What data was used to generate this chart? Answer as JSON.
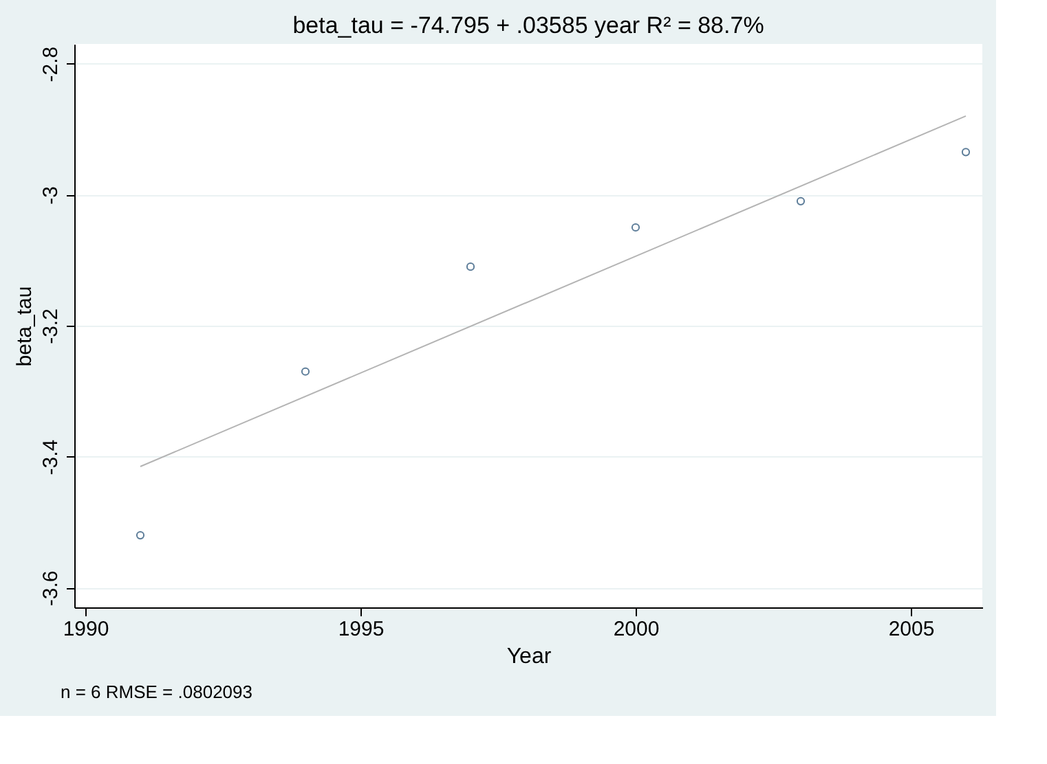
{
  "chart_data": {
    "type": "scatter",
    "title": "beta_tau = -74.795 + .03585 year    R² = 88.7%",
    "xlabel": "Year",
    "ylabel": "beta_tau",
    "series": [
      {
        "x": [
          1991,
          1994,
          1997,
          2000,
          2003,
          2006
        ],
        "values": [
          -3.52,
          -3.27,
          -3.11,
          -3.05,
          -3.01,
          -2.935
        ],
        "color": "#1a476f",
        "marker": "circle"
      },
      {
        "type": "line",
        "x": [
          1991,
          2006
        ],
        "values": [
          -3.415,
          -2.88
        ],
        "color": "#b4b4b4",
        "line_style": "solid"
      }
    ],
    "xlim": [
      1989.8,
      2006.3
    ],
    "xticks": [
      1990,
      1995,
      2000,
      2005
    ],
    "ylim": [
      -3.63,
      -2.77
    ],
    "yticks": [
      -3.6,
      -3.4,
      -3.2,
      -3,
      -2.8
    ],
    "grid": "y",
    "annotations": [
      "n = 6   RMSE = .0802093"
    ]
  }
}
